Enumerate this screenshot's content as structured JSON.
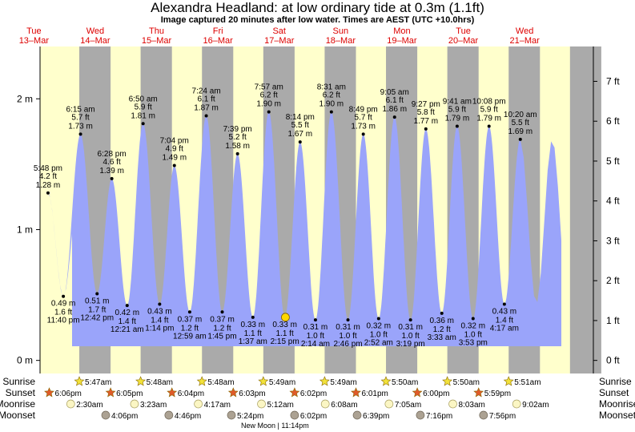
{
  "header": {
    "title": "Alexandra Headland: at low  ordinary tide at 0.3m (1.1ft)",
    "subtitle": "Image captured 20 minutes after low water. Times are AEST (UTC +10.0hrs)"
  },
  "chart_data": {
    "type": "area",
    "days": [
      {
        "dow": "Tue",
        "date": "13–Mar"
      },
      {
        "dow": "Wed",
        "date": "14–Mar"
      },
      {
        "dow": "Thu",
        "date": "15–Mar"
      },
      {
        "dow": "Fri",
        "date": "16–Mar"
      },
      {
        "dow": "Sat",
        "date": "17–Mar"
      },
      {
        "dow": "Sun",
        "date": "18–Mar"
      },
      {
        "dow": "Mon",
        "date": "19–Mar"
      },
      {
        "dow": "Tue",
        "date": "20–Mar"
      },
      {
        "dow": "Wed",
        "date": "21–Mar"
      }
    ],
    "y_axis_m": {
      "range": [
        -0.1,
        2.4
      ],
      "ticks": [
        {
          "v": 0,
          "label": "0 m"
        },
        {
          "v": 1,
          "label": "1 m"
        },
        {
          "v": 2,
          "label": "2 m"
        }
      ]
    },
    "y_axis_ft": {
      "ticks": [
        {
          "v": 0,
          "label": "0 ft"
        },
        {
          "v": 1,
          "label": "1 ft"
        },
        {
          "v": 2,
          "label": "2 ft"
        },
        {
          "v": 3,
          "label": "3 ft"
        },
        {
          "v": 4,
          "label": "4 ft"
        },
        {
          "v": 5,
          "label": "5 ft"
        },
        {
          "v": 6,
          "label": "6 ft"
        },
        {
          "v": 7,
          "label": "7 ft"
        }
      ]
    },
    "night_shading": [
      {
        "start": 2.24,
        "end": 2.75
      },
      {
        "start": 3.24,
        "end": 3.75
      },
      {
        "start": 4.24,
        "end": 4.75
      },
      {
        "start": 5.24,
        "end": 5.75
      },
      {
        "start": 6.24,
        "end": 6.75
      },
      {
        "start": 7.24,
        "end": 7.75
      },
      {
        "start": 8.24,
        "end": 8.75
      },
      {
        "start": 9.24,
        "end": 9.75
      },
      {
        "start": 10.24,
        "end": 10.75
      }
    ],
    "tides": [
      {
        "t": 1.73,
        "type": "high",
        "time": "5:48 pm",
        "ft": "4.2 ft",
        "m": 1.28
      },
      {
        "t": 1.98,
        "type": "low",
        "time": "11:40 pm",
        "ft": "1.6 ft",
        "m": 0.49
      },
      {
        "t": 2.26,
        "type": "high",
        "time": "6:15 am",
        "ft": "5.7 ft",
        "m": 1.73
      },
      {
        "t": 2.53,
        "type": "low",
        "time": "12:42 pm",
        "ft": "1.7 ft",
        "m": 0.51
      },
      {
        "t": 2.77,
        "type": "high",
        "time": "6:28 pm",
        "ft": "4.6 ft",
        "m": 1.39
      },
      {
        "t": 3.02,
        "type": "low",
        "time": "12:21 am",
        "ft": "1.4 ft",
        "m": 0.42
      },
      {
        "t": 3.28,
        "type": "high",
        "time": "6:50 am",
        "ft": "5.9 ft",
        "m": 1.81
      },
      {
        "t": 3.55,
        "type": "low",
        "time": "1:14 pm",
        "ft": "1.4 ft",
        "m": 0.43
      },
      {
        "t": 3.79,
        "type": "high",
        "time": "7:04 pm",
        "ft": "4.9 ft",
        "m": 1.49
      },
      {
        "t": 4.04,
        "type": "low",
        "time": "12:59 am",
        "ft": "1.2 ft",
        "m": 0.37
      },
      {
        "t": 4.31,
        "type": "high",
        "time": "7:24 am",
        "ft": "6.1 ft",
        "m": 1.87
      },
      {
        "t": 4.57,
        "type": "low",
        "time": "1:45 pm",
        "ft": "1.2 ft",
        "m": 0.37
      },
      {
        "t": 4.82,
        "type": "high",
        "time": "7:39 pm",
        "ft": "5.2 ft",
        "m": 1.58
      },
      {
        "t": 5.07,
        "type": "low",
        "time": "1:37 am",
        "ft": "1.1 ft",
        "m": 0.33
      },
      {
        "t": 5.33,
        "type": "high",
        "time": "7:57 am",
        "ft": "6.2 ft",
        "m": 1.9
      },
      {
        "t": 5.59,
        "type": "low",
        "time": "2:15 pm",
        "ft": "1.1 ft",
        "m": 0.33
      },
      {
        "t": 5.84,
        "type": "high",
        "time": "8:14 pm",
        "ft": "5.5 ft",
        "m": 1.67
      },
      {
        "t": 6.09,
        "type": "low",
        "time": "2:14 am",
        "ft": "1.0 ft",
        "m": 0.31
      },
      {
        "t": 6.35,
        "type": "high",
        "time": "8:31 am",
        "ft": "6.2 ft",
        "m": 1.9
      },
      {
        "t": 6.62,
        "type": "low",
        "time": "2:46 pm",
        "ft": "1.0 ft",
        "m": 0.31
      },
      {
        "t": 6.87,
        "type": "high",
        "time": "8:49 pm",
        "ft": "5.7 ft",
        "m": 1.73
      },
      {
        "t": 7.12,
        "type": "low",
        "time": "2:52 am",
        "ft": "1.0 ft",
        "m": 0.32
      },
      {
        "t": 7.38,
        "type": "high",
        "time": "9:05 am",
        "ft": "6.1 ft",
        "m": 1.86
      },
      {
        "t": 7.64,
        "type": "low",
        "time": "3:19 pm",
        "ft": "1.0 ft",
        "m": 0.31
      },
      {
        "t": 7.89,
        "type": "high",
        "time": "9:27 pm",
        "ft": "5.8 ft",
        "m": 1.77
      },
      {
        "t": 8.15,
        "type": "low",
        "time": "3:33 am",
        "ft": "1.2 ft",
        "m": 0.36
      },
      {
        "t": 8.4,
        "type": "high",
        "time": "9:41 am",
        "ft": "5.9 ft",
        "m": 1.79
      },
      {
        "t": 8.66,
        "type": "low",
        "time": "3:53 pm",
        "ft": "1.0 ft",
        "m": 0.32
      },
      {
        "t": 8.92,
        "type": "high",
        "time": "10:08 pm",
        "ft": "5.9 ft",
        "m": 1.79
      },
      {
        "t": 9.17,
        "type": "low",
        "time": "4:17 am",
        "ft": "1.4 ft",
        "m": 0.43
      },
      {
        "t": 9.43,
        "type": "high",
        "time": "10:20 am",
        "ft": "5.5 ft",
        "m": 1.69
      }
    ],
    "current_marker": {
      "t": 5.6,
      "m": 0.33
    }
  },
  "astro": {
    "labels": {
      "sunrise": "Sunrise",
      "sunset": "Sunset",
      "moonrise": "Moonrise",
      "moonset": "Moonset"
    },
    "sunrise": [
      {
        "t": 2.24,
        "time": "5:47am"
      },
      {
        "t": 3.24,
        "time": "5:48am"
      },
      {
        "t": 4.24,
        "time": "5:48am"
      },
      {
        "t": 5.24,
        "time": "5:49am"
      },
      {
        "t": 6.24,
        "time": "5:49am"
      },
      {
        "t": 7.24,
        "time": "5:50am"
      },
      {
        "t": 8.24,
        "time": "5:50am"
      },
      {
        "t": 9.24,
        "time": "5:51am"
      }
    ],
    "sunset": [
      {
        "t": 1.75,
        "time": "6:06pm"
      },
      {
        "t": 2.75,
        "time": "6:05pm"
      },
      {
        "t": 3.75,
        "time": "6:04pm"
      },
      {
        "t": 4.75,
        "time": "6:03pm"
      },
      {
        "t": 5.75,
        "time": "6:02pm"
      },
      {
        "t": 6.75,
        "time": "6:01pm"
      },
      {
        "t": 7.75,
        "time": "6:00pm"
      },
      {
        "t": 8.75,
        "time": "5:59pm"
      }
    ],
    "moonrise": [
      {
        "t": 2.1,
        "time": "2:30am"
      },
      {
        "t": 3.14,
        "time": "3:23am"
      },
      {
        "t": 4.18,
        "time": "4:17am"
      },
      {
        "t": 5.21,
        "time": "5:12am"
      },
      {
        "t": 6.25,
        "time": "6:08am"
      },
      {
        "t": 7.29,
        "time": "7:05am"
      },
      {
        "t": 8.33,
        "time": "8:03am"
      },
      {
        "t": 9.37,
        "time": "9:02am"
      }
    ],
    "moonset": [
      {
        "t": 2.67,
        "time": "4:06pm"
      },
      {
        "t": 3.7,
        "time": "4:46pm"
      },
      {
        "t": 4.72,
        "time": "5:24pm"
      },
      {
        "t": 5.75,
        "time": "6:02pm"
      },
      {
        "t": 6.77,
        "time": "6:39pm"
      },
      {
        "t": 7.8,
        "time": "7:16pm"
      },
      {
        "t": 8.83,
        "time": "7:56pm"
      }
    ],
    "new_moon": {
      "t": 5.43,
      "label": "New Moon | 11:14pm"
    }
  },
  "colors": {
    "day": "#ffffcc",
    "night": "#aaaaaa",
    "water": "#9aa4fa",
    "day_header": "#dd0000",
    "axis": "#000000",
    "sun_fill": "#f2e23a",
    "sunset_fill": "#e05a2a",
    "moonrise_fill": "#fbf6c4",
    "moonset_fill": "#aca293",
    "current_marker": "#ffd700"
  }
}
